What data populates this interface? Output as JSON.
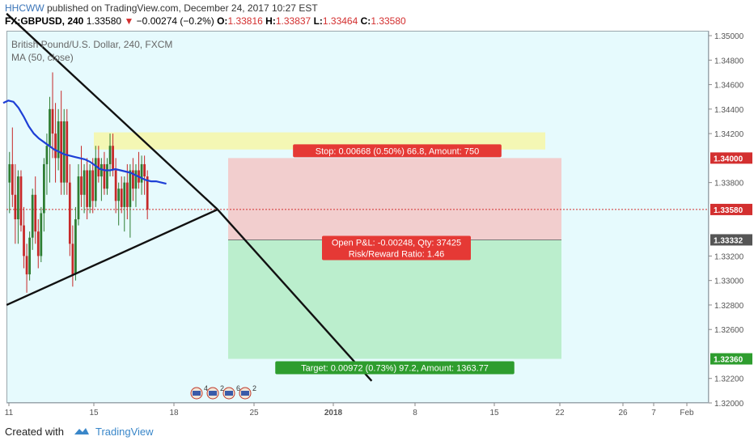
{
  "header": {
    "user": "HHCWW",
    "published": "published on TradingView.com, December 24, 2017 10:27 EST",
    "symbol": "FX:GBPUSD, 240",
    "last": "1.33580",
    "change_arrow": "▼",
    "change": "−0.00274 (−0.2%)",
    "o_label": "O:",
    "o_val": "1.33816",
    "h_label": "H:",
    "h_val": "1.33837",
    "l_label": "L:",
    "l_val": "1.33464",
    "c_label": "C:",
    "c_val": "1.33580"
  },
  "legend": {
    "title": "British Pound/U.S. Dollar, 240, FXCM",
    "indicator": "MA (50, close)"
  },
  "footer": {
    "created_with": "Created with",
    "brand": "TradingView"
  },
  "colors": {
    "up": "#2e7d32",
    "down": "#c62828",
    "ma": "#1e3fd6",
    "stop_zone": "#f3c6c6",
    "target_zone": "#b3ebc4",
    "yellow_band": "#f4f7b0",
    "stop_label": "#e53935",
    "target_label": "#2e9d2e",
    "price_tag": "#d32f2f",
    "entry_tag": "#555555",
    "target_tag": "#2e9d2e"
  },
  "chart_data": {
    "type": "candlestick",
    "title": "British Pound/U.S. Dollar, 240, FXCM",
    "xlabel": "",
    "ylabel": "",
    "ylim": [
      1.32,
      1.3504
    ],
    "y_ticks": [
      "1.35000",
      "1.34800",
      "1.34600",
      "1.34400",
      "1.34200",
      "1.34000",
      "1.33800",
      "1.33580",
      "1.33332",
      "1.33200",
      "1.33000",
      "1.32800",
      "1.32600",
      "1.32360",
      "1.32200",
      "1.32000"
    ],
    "x_ticks": [
      "11",
      "15",
      "18",
      "25",
      "2018",
      "8",
      "15",
      "22",
      "26",
      "Feb",
      "7"
    ],
    "candles_ohlc": [
      [
        1.338,
        1.3405,
        1.3355,
        1.3395
      ],
      [
        1.3395,
        1.3425,
        1.336,
        1.337
      ],
      [
        1.337,
        1.3395,
        1.333,
        1.335
      ],
      [
        1.335,
        1.339,
        1.333,
        1.3385
      ],
      [
        1.3385,
        1.339,
        1.334,
        1.3345
      ],
      [
        1.3345,
        1.336,
        1.331,
        1.332
      ],
      [
        1.332,
        1.333,
        1.329,
        1.3305
      ],
      [
        1.3305,
        1.334,
        1.33,
        1.3335
      ],
      [
        1.3335,
        1.3375,
        1.3325,
        1.337
      ],
      [
        1.337,
        1.3385,
        1.333,
        1.334
      ],
      [
        1.334,
        1.335,
        1.331,
        1.332
      ],
      [
        1.332,
        1.336,
        1.3315,
        1.3355
      ],
      [
        1.3355,
        1.34,
        1.334,
        1.3395
      ],
      [
        1.3395,
        1.342,
        1.337,
        1.341
      ],
      [
        1.341,
        1.345,
        1.338,
        1.344
      ],
      [
        1.344,
        1.347,
        1.34,
        1.342
      ],
      [
        1.342,
        1.3445,
        1.338,
        1.34
      ],
      [
        1.34,
        1.344,
        1.339,
        1.343
      ],
      [
        1.343,
        1.3455,
        1.337,
        1.338
      ],
      [
        1.338,
        1.344,
        1.337,
        1.343
      ],
      [
        1.343,
        1.344,
        1.337,
        1.338
      ],
      [
        1.338,
        1.3395,
        1.332,
        1.333
      ],
      [
        1.333,
        1.3345,
        1.3295,
        1.3305
      ],
      [
        1.3305,
        1.336,
        1.33,
        1.335
      ],
      [
        1.335,
        1.3395,
        1.3345,
        1.3385
      ],
      [
        1.3385,
        1.341,
        1.336,
        1.337
      ],
      [
        1.337,
        1.3395,
        1.3355,
        1.339
      ],
      [
        1.339,
        1.34,
        1.335,
        1.336
      ],
      [
        1.336,
        1.3395,
        1.3355,
        1.339
      ],
      [
        1.339,
        1.34,
        1.3355,
        1.3365
      ],
      [
        1.3365,
        1.341,
        1.336,
        1.34
      ],
      [
        1.34,
        1.341,
        1.338,
        1.3385
      ],
      [
        1.3385,
        1.34,
        1.3365,
        1.3395
      ],
      [
        1.3395,
        1.3405,
        1.337,
        1.3375
      ],
      [
        1.3375,
        1.34,
        1.337,
        1.3395
      ],
      [
        1.3395,
        1.342,
        1.3385,
        1.341
      ],
      [
        1.341,
        1.342,
        1.3385,
        1.339
      ],
      [
        1.339,
        1.34,
        1.3355,
        1.3365
      ],
      [
        1.3365,
        1.338,
        1.3345,
        1.3375
      ],
      [
        1.3375,
        1.3385,
        1.3355,
        1.336
      ],
      [
        1.336,
        1.3385,
        1.334,
        1.338
      ],
      [
        1.338,
        1.3395,
        1.335,
        1.336
      ],
      [
        1.336,
        1.3395,
        1.3335,
        1.339
      ],
      [
        1.339,
        1.34,
        1.3365,
        1.3375
      ],
      [
        1.3375,
        1.3395,
        1.336,
        1.339
      ],
      [
        1.339,
        1.3405,
        1.3375,
        1.338
      ],
      [
        1.338,
        1.3402,
        1.337,
        1.3395
      ],
      [
        1.3395,
        1.3402,
        1.337,
        1.3385
      ],
      [
        1.3385,
        1.339,
        1.335,
        1.3358
      ]
    ],
    "ma50": [
      1.3445,
      1.3447,
      1.3446,
      1.3441,
      1.3434,
      1.3426,
      1.342,
      1.3416,
      1.3413,
      1.341,
      1.3407,
      1.3405,
      1.3403,
      1.3402,
      1.3401,
      1.34,
      1.3399,
      1.3397,
      1.3394,
      1.3391,
      1.339,
      1.339,
      1.3391,
      1.339,
      1.3389,
      1.3388,
      1.3386,
      1.3384,
      1.3382,
      1.3381,
      1.3381,
      1.338,
      1.3379
    ],
    "trendlines": [
      {
        "from": [
          1,
          1.3518
        ],
        "to": [
          64,
          1.3358
        ]
      },
      {
        "from": [
          1,
          1.328
        ],
        "to": [
          64,
          1.3358
        ]
      },
      {
        "from": [
          64,
          1.3358
        ],
        "to": [
          110,
          1.3218
        ]
      }
    ],
    "price_line": 1.3358,
    "position": {
      "entry": 1.33332,
      "stop": 1.34,
      "target": 1.3236,
      "stop_label": "Stop: 0.00668 (0.50%) 66.8, Amount: 750",
      "pnl_label": "Open P&L: -0.00248, Qty: 37425",
      "rr_label": "Risk/Reward Ratio: 1.46",
      "target_label": "Target: 0.00972 (0.73%) 97.2, Amount: 1363.77"
    },
    "yellow_band": [
      1.3407,
      1.3421
    ],
    "axis_tags": {
      "stop": "1.34000",
      "last": "1.33580",
      "entry": "1.33332",
      "target": "1.32360"
    },
    "events": [
      "4",
      "2",
      "6",
      "2"
    ]
  }
}
